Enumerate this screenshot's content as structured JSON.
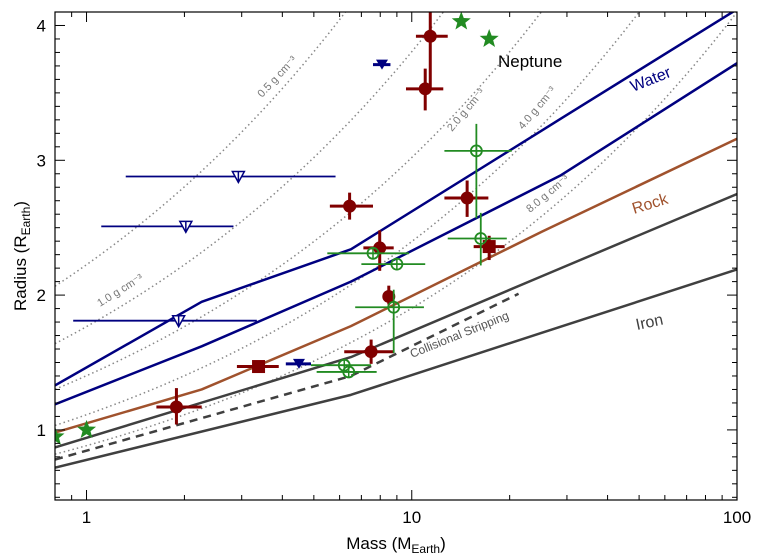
{
  "chart_data": {
    "type": "scatter",
    "xlabel": {
      "main": "Mass (M",
      "sub": "Earth",
      "close": ")"
    },
    "ylabel": {
      "main": "Radius (R",
      "sub": "Earth",
      "close": ")"
    },
    "xscale": "log",
    "xlim": [
      0.8,
      100
    ],
    "ylim": [
      0.48,
      4.1
    ],
    "xticks": [
      {
        "v": 1,
        "label": "1"
      },
      {
        "v": 10,
        "label": "10"
      },
      {
        "v": 100,
        "label": "100"
      }
    ],
    "yticks": [
      {
        "v": 1,
        "label": "1"
      },
      {
        "v": 2,
        "label": "2"
      },
      {
        "v": 3,
        "label": "3"
      },
      {
        "v": 4,
        "label": "4"
      }
    ],
    "grid": false,
    "colors": {
      "water": "#000080",
      "rock": "#a0522d",
      "iron": "#404040",
      "measured": "#800000",
      "kepler": "#228b22",
      "limits": "#000080",
      "density": "#888888"
    },
    "curves": [
      {
        "name": "water-upper",
        "label": "Water",
        "color": "#000080",
        "style": "solid",
        "points": [
          [
            0.8,
            1.33
          ],
          [
            2.26,
            1.95
          ],
          [
            6.5,
            2.34
          ],
          [
            28.8,
            3.31
          ],
          [
            100,
            4.12
          ]
        ]
      },
      {
        "name": "water-lower",
        "color": "#000080",
        "style": "solid",
        "points": [
          [
            0.8,
            1.19
          ],
          [
            2.26,
            1.62
          ],
          [
            6.5,
            2.1
          ],
          [
            28.8,
            2.89
          ],
          [
            100,
            3.72
          ]
        ]
      },
      {
        "name": "rock",
        "label": "Rock",
        "color": "#a0522d",
        "style": "solid",
        "points": [
          [
            0.8,
            0.98
          ],
          [
            2.26,
            1.3
          ],
          [
            6.5,
            1.77
          ],
          [
            25.1,
            2.47
          ],
          [
            100,
            3.16
          ]
        ]
      },
      {
        "name": "iron-upper",
        "color": "#404040",
        "style": "solid",
        "points": [
          [
            0.8,
            0.87
          ],
          [
            6.5,
            1.54
          ],
          [
            25.1,
            2.14
          ],
          [
            100,
            2.75
          ]
        ]
      },
      {
        "name": "iron-lower",
        "label": "Iron",
        "color": "#404040",
        "style": "solid",
        "points": [
          [
            0.8,
            0.72
          ],
          [
            6.5,
            1.26
          ],
          [
            25.1,
            1.72
          ],
          [
            100,
            2.19
          ]
        ]
      },
      {
        "name": "collisional-stripping",
        "label": "Collisional Stripping",
        "color": "#404040",
        "style": "dashed",
        "points": [
          [
            0.8,
            0.78
          ],
          [
            6.5,
            1.4
          ],
          [
            21.3,
            2.01
          ]
        ]
      }
    ],
    "density_lines": [
      {
        "rho": 0.5,
        "label": "0.5 g cm⁻³"
      },
      {
        "rho": 1.0,
        "label": "1.0 g cm⁻³"
      },
      {
        "rho": 2.0,
        "label": "2.0 g cm⁻³"
      },
      {
        "rho": 4.0,
        "label": "4.0 g cm⁻³"
      },
      {
        "rho": 8.0,
        "label": "8.0 g cm⁻³"
      }
    ],
    "annotations": [
      {
        "text": "Neptune"
      }
    ],
    "series": [
      {
        "marker": "circle",
        "color": "#800000",
        "points": [
          {
            "x": 1.89,
            "y": 1.17,
            "xerr": [
              1.64,
              2.26
            ],
            "yerr": [
              1.04,
              1.31
            ]
          },
          {
            "x": 6.44,
            "y": 2.66,
            "xerr": [
              5.6,
              7.6
            ],
            "yerr": [
              2.56,
              2.76
            ]
          },
          {
            "x": 7.97,
            "y": 2.35,
            "xerr": [
              7.1,
              8.8
            ],
            "yerr": [
              2.18,
              2.48
            ]
          },
          {
            "x": 8.5,
            "y": 1.99,
            "xerr": [
              8.5,
              8.5
            ],
            "yerr": [
              1.93,
              2.07
            ]
          },
          {
            "x": 7.5,
            "y": 1.58,
            "xerr": [
              6.2,
              8.8
            ],
            "yerr": [
              1.49,
              1.67
            ]
          },
          {
            "x": 11.4,
            "y": 3.92,
            "xerr": [
              10.3,
              12.9
            ],
            "yerr": [
              3.52,
              4.1
            ]
          },
          {
            "x": 11.0,
            "y": 3.53,
            "xerr": [
              9.6,
              12.5
            ],
            "yerr": [
              3.37,
              3.68
            ]
          },
          {
            "x": 14.8,
            "y": 2.72,
            "xerr": [
              12.6,
              17.2
            ],
            "yerr": [
              2.58,
              2.85
            ]
          }
        ]
      },
      {
        "marker": "square",
        "color": "#800000",
        "points": [
          {
            "x": 3.38,
            "y": 1.47,
            "xerr": [
              2.9,
              3.9
            ],
            "yerr": [
              1.47,
              1.47
            ]
          },
          {
            "x": 17.3,
            "y": 2.36,
            "xerr": [
              15.5,
              19.3
            ],
            "yerr": [
              2.26,
              2.44
            ]
          }
        ]
      },
      {
        "marker": "triangle-down-filled",
        "color": "#000080",
        "points": [
          {
            "x": 8.1,
            "y": 3.71,
            "xerr": [
              7.6,
              8.6
            ],
            "yerr": [
              3.71,
              3.71
            ]
          },
          {
            "x": 4.5,
            "y": 1.49,
            "xerr": [
              4.1,
              4.9
            ],
            "yerr": [
              1.49,
              1.49
            ]
          }
        ]
      },
      {
        "marker": "triangle-down-open",
        "color": "#000080",
        "points": [
          {
            "x": 2.93,
            "y": 2.88,
            "xerr": [
              1.32,
              5.83
            ],
            "yerr": [
              2.88,
              2.88
            ]
          },
          {
            "x": 2.02,
            "y": 2.51,
            "xerr": [
              1.11,
              2.83
            ],
            "yerr": [
              2.51,
              2.51
            ]
          },
          {
            "x": 1.92,
            "y": 1.81,
            "xerr": [
              0.91,
              3.34
            ],
            "yerr": [
              1.81,
              1.81
            ]
          }
        ]
      },
      {
        "marker": "circle-open",
        "color": "#228b22",
        "points": [
          {
            "x": 15.8,
            "y": 3.07,
            "xerr": [
              12.6,
              20.3
            ],
            "yerr": [
              2.57,
              3.27
            ]
          },
          {
            "x": 16.3,
            "y": 2.42,
            "xerr": [
              12.9,
              19.6
            ],
            "yerr": [
              2.22,
              2.61
            ]
          },
          {
            "x": 7.6,
            "y": 2.31,
            "xerr": [
              5.5,
              9.8
            ],
            "yerr": [
              2.31,
              2.31
            ]
          },
          {
            "x": 9.0,
            "y": 2.23,
            "xerr": [
              7.0,
              11.0
            ],
            "yerr": [
              2.23,
              2.23
            ]
          },
          {
            "x": 8.8,
            "y": 1.91,
            "xerr": [
              6.7,
              10.9
            ],
            "yerr": [
              1.57,
              2.04
            ]
          },
          {
            "x": 6.2,
            "y": 1.48,
            "xerr": [
              4.9,
              7.5
            ],
            "yerr": [
              1.48,
              1.48
            ]
          },
          {
            "x": 6.4,
            "y": 1.43,
            "xerr": [
              5.1,
              7.8
            ],
            "yerr": [
              1.43,
              1.43
            ]
          }
        ]
      },
      {
        "marker": "star",
        "color": "#228b22",
        "points": [
          {
            "x": 0.8,
            "y": 0.95
          },
          {
            "x": 1.0,
            "y": 1.0
          },
          {
            "x": 14.2,
            "y": 4.03
          },
          {
            "x": 17.3,
            "y": 3.9
          }
        ]
      }
    ]
  }
}
